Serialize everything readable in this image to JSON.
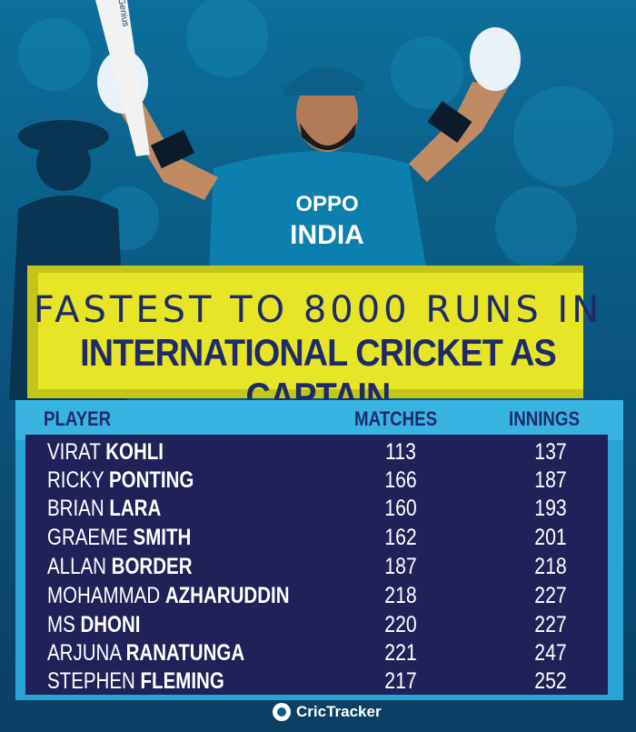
{
  "title": {
    "line1": "FASTEST TO 8000 RUNS IN",
    "line2": "INTERNATIONAL CRICKET AS CAPTAIN"
  },
  "table": {
    "headers": {
      "player": "PLAYER",
      "matches": "MATCHES",
      "innings": "INNINGS"
    },
    "rows": [
      {
        "first": "VIRAT",
        "last": "KOHLI",
        "matches": "113",
        "innings": "137"
      },
      {
        "first": "RICKY",
        "last": "PONTING",
        "matches": "166",
        "innings": "187"
      },
      {
        "first": "BRIAN",
        "last": "LARA",
        "matches": "160",
        "innings": "193"
      },
      {
        "first": "GRAEME",
        "last": "SMITH",
        "matches": "162",
        "innings": "201"
      },
      {
        "first": "ALLAN",
        "last": "BORDER",
        "matches": "187",
        "innings": "218"
      },
      {
        "first": "MOHAMMAD",
        "last": "AZHARUDDIN",
        "matches": "218",
        "innings": "227"
      },
      {
        "first": "MS",
        "last": "DHONI",
        "matches": "220",
        "innings": "227"
      },
      {
        "first": "ARJUNA",
        "last": "RANATUNGA",
        "matches": "221",
        "innings": "247"
      },
      {
        "first": "STEPHEN",
        "last": "FLEMING",
        "matches": "217",
        "innings": "252"
      }
    ]
  },
  "photo": {
    "shirt_text_1": "OPPO",
    "shirt_text_2": "INDIA",
    "bat_text": "Genius"
  },
  "footer": {
    "brand": "CricTracker"
  },
  "colors": {
    "banner": "#e6e627",
    "title_text": "#1f2a6b",
    "table_header": "#38b4e3",
    "table_body": "#212159",
    "background": "#0a5f88"
  }
}
